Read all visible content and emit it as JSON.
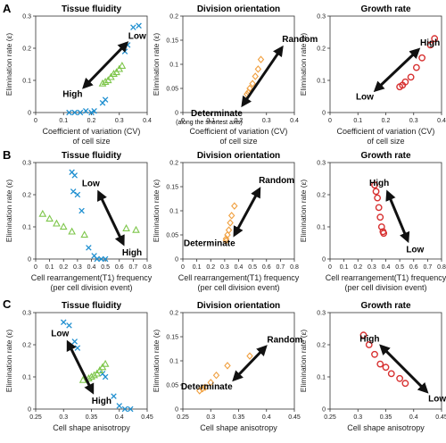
{
  "row_labels": [
    "A",
    "B",
    "C"
  ],
  "colors": {
    "cross": "#1f8fd0",
    "triangle": "#7ec64b",
    "diamond": "#f0a040",
    "circle": "#d73030",
    "axis": "#333333"
  },
  "chart_data": [
    {
      "type": "scatter",
      "row": "A",
      "title": "Tissue fluidity",
      "xlabel": "Coefficient of variation (CV)",
      "xlabel2": "of cell size",
      "ylabel": "Elimination rate (ε)",
      "xlim": [
        0,
        0.4
      ],
      "ylim": [
        0,
        0.3
      ],
      "xticks": [
        "0",
        "0.1",
        "0.2",
        "0.3",
        "0.4"
      ],
      "yticks": [
        "0",
        "0.1",
        "0.2",
        "0.3"
      ],
      "arrow": {
        "from": [
          0.18,
          0.085
        ],
        "to": [
          0.32,
          0.21
        ],
        "head_text": "Low",
        "tail_text": "High"
      },
      "series": [
        {
          "marker": "cross",
          "color": "#1f8fd0",
          "points": [
            [
              0.12,
              0.0
            ],
            [
              0.14,
              0.0
            ],
            [
              0.16,
              0.0
            ],
            [
              0.18,
              0.005
            ],
            [
              0.2,
              0.0
            ],
            [
              0.21,
              0.005
            ],
            [
              0.24,
              0.03
            ],
            [
              0.25,
              0.04
            ],
            [
              0.32,
              0.19
            ],
            [
              0.33,
              0.21
            ],
            [
              0.35,
              0.265
            ],
            [
              0.37,
              0.27
            ]
          ]
        },
        {
          "marker": "triangle",
          "color": "#7ec64b",
          "points": [
            [
              0.24,
              0.09
            ],
            [
              0.25,
              0.095
            ],
            [
              0.26,
              0.1
            ],
            [
              0.27,
              0.11
            ],
            [
              0.28,
              0.12
            ],
            [
              0.29,
              0.125
            ],
            [
              0.3,
              0.135
            ],
            [
              0.31,
              0.145
            ]
          ]
        }
      ]
    },
    {
      "type": "scatter",
      "row": "A",
      "title": "Division orientation",
      "xlabel": "Coefficient of variation (CV)",
      "xlabel2": "of cell size",
      "ylabel": "Elimination rate (ε)",
      "xlim": [
        0,
        0.4
      ],
      "ylim": [
        0,
        0.2
      ],
      "xticks": [
        "0",
        "0.1",
        "0.2",
        "0.3",
        "0.4"
      ],
      "yticks": [
        "0",
        "0.05",
        "0.1",
        "0.15",
        "0.2"
      ],
      "arrow": {
        "from": [
          0.22,
          0.02
        ],
        "to": [
          0.35,
          0.13
        ],
        "head_text": "Random",
        "tail_text": "Determinate",
        "tail_text2": "(along the shortest axis)"
      },
      "series": [
        {
          "marker": "diamond",
          "color": "#f0a040",
          "points": [
            [
              0.23,
              0.038
            ],
            [
              0.235,
              0.042
            ],
            [
              0.24,
              0.05
            ],
            [
              0.25,
              0.06
            ],
            [
              0.26,
              0.075
            ],
            [
              0.27,
              0.09
            ],
            [
              0.28,
              0.11
            ]
          ]
        }
      ]
    },
    {
      "type": "scatter",
      "row": "A",
      "title": "Growth rate",
      "xlabel": "Coefficient of variation (CV)",
      "xlabel2": "of cell size",
      "ylabel": "Elimination rate (ε)",
      "xlim": [
        0,
        0.4
      ],
      "ylim": [
        0,
        0.3
      ],
      "xticks": [
        "0",
        "0.1",
        "0.2",
        "0.3",
        "0.4"
      ],
      "yticks": [
        "0",
        "0.1",
        "0.2",
        "0.3"
      ],
      "arrow": {
        "from": [
          0.17,
          0.075
        ],
        "to": [
          0.31,
          0.19
        ],
        "head_text": "High",
        "tail_text": "Low"
      },
      "series": [
        {
          "marker": "circle",
          "color": "#d73030",
          "points": [
            [
              0.25,
              0.08
            ],
            [
              0.26,
              0.085
            ],
            [
              0.27,
              0.095
            ],
            [
              0.29,
              0.11
            ],
            [
              0.31,
              0.14
            ],
            [
              0.33,
              0.17
            ],
            [
              0.36,
              0.21
            ],
            [
              0.375,
              0.23
            ]
          ]
        }
      ]
    },
    {
      "type": "scatter",
      "row": "B",
      "title": "Tissue fluidity",
      "xlabel": "Cell rearrangement(T1) frequency",
      "xlabel2": "(per cell division event)",
      "ylabel": "Elimination rate (ε)",
      "xlim": [
        0,
        0.8
      ],
      "ylim": [
        0,
        0.3
      ],
      "xticks": [
        "0",
        "0.1",
        "0.2",
        "0.3",
        "0.4",
        "0.5",
        "0.6",
        "0.7",
        "0.8"
      ],
      "yticks": [
        "0",
        "0.1",
        "0.2",
        "0.3"
      ],
      "arrow": {
        "from": [
          0.46,
          0.2
        ],
        "to": [
          0.62,
          0.055
        ],
        "head_text": "High",
        "tail_text": "Low"
      },
      "series": [
        {
          "marker": "cross",
          "color": "#1f8fd0",
          "points": [
            [
              0.26,
              0.27
            ],
            [
              0.28,
              0.26
            ],
            [
              0.27,
              0.21
            ],
            [
              0.3,
              0.2
            ],
            [
              0.33,
              0.15
            ],
            [
              0.38,
              0.035
            ],
            [
              0.42,
              0.01
            ],
            [
              0.44,
              0.0
            ],
            [
              0.47,
              0.0
            ],
            [
              0.5,
              0.0
            ]
          ]
        },
        {
          "marker": "triangle",
          "color": "#7ec64b",
          "points": [
            [
              0.05,
              0.14
            ],
            [
              0.1,
              0.125
            ],
            [
              0.15,
              0.11
            ],
            [
              0.2,
              0.1
            ],
            [
              0.26,
              0.085
            ],
            [
              0.35,
              0.075
            ],
            [
              0.65,
              0.095
            ],
            [
              0.72,
              0.09
            ]
          ]
        }
      ]
    },
    {
      "type": "scatter",
      "row": "B",
      "title": "Division orientation",
      "xlabel": "Cell rearrangement(T1) frequency",
      "xlabel2": "(per cell division event)",
      "ylabel": "Elimination rate (ε)",
      "xlim": [
        0,
        0.8
      ],
      "ylim": [
        0,
        0.2
      ],
      "xticks": [
        "0",
        "0.1",
        "0.2",
        "0.3",
        "0.4",
        "0.5",
        "0.6",
        "0.7",
        "0.8"
      ],
      "yticks": [
        "0",
        "0.05",
        "0.1",
        "0.15",
        "0.2"
      ],
      "arrow": {
        "from": [
          0.38,
          0.055
        ],
        "to": [
          0.54,
          0.14
        ],
        "head_text": "Random",
        "tail_text": "Determinate"
      },
      "series": [
        {
          "marker": "diamond",
          "color": "#f0a040",
          "points": [
            [
              0.31,
              0.038
            ],
            [
              0.31,
              0.042
            ],
            [
              0.32,
              0.05
            ],
            [
              0.33,
              0.06
            ],
            [
              0.34,
              0.075
            ],
            [
              0.35,
              0.09
            ],
            [
              0.37,
              0.11
            ]
          ]
        }
      ]
    },
    {
      "type": "scatter",
      "row": "B",
      "title": "Growth rate",
      "xlabel": "Cell rearrangement(T1) frequency",
      "xlabel2": "(per cell division event)",
      "ylabel": "Elimination rate (ε)",
      "xlim": [
        0,
        0.8
      ],
      "ylim": [
        0,
        0.3
      ],
      "xticks": [
        "0",
        "0.1",
        "0.2",
        "0.3",
        "0.4",
        "0.5",
        "0.6",
        "0.7",
        "0.8"
      ],
      "yticks": [
        "0",
        "0.1",
        "0.2",
        "0.3"
      ],
      "arrow": {
        "from": [
          0.42,
          0.2
        ],
        "to": [
          0.55,
          0.065
        ],
        "head_text": "Low",
        "tail_text": "High"
      },
      "series": [
        {
          "marker": "circle",
          "color": "#d73030",
          "points": [
            [
              0.32,
              0.23
            ],
            [
              0.33,
              0.21
            ],
            [
              0.34,
              0.19
            ],
            [
              0.35,
              0.16
            ],
            [
              0.36,
              0.13
            ],
            [
              0.37,
              0.1
            ],
            [
              0.38,
              0.085
            ],
            [
              0.385,
              0.08
            ]
          ]
        }
      ]
    },
    {
      "type": "scatter",
      "row": "C",
      "title": "Tissue fluidity",
      "xlabel": "Cell shape anisotropy",
      "ylabel": "Elimination rate (ε)",
      "xlim": [
        0.25,
        0.45
      ],
      "ylim": [
        0,
        0.3
      ],
      "xticks": [
        "0.25",
        "0.3",
        "0.35",
        "0.4",
        "0.45"
      ],
      "yticks": [
        "0",
        "0.1",
        "0.2",
        "0.3"
      ],
      "arrow": {
        "from": [
          0.31,
          0.2
        ],
        "to": [
          0.35,
          0.06
        ],
        "head_text": "High",
        "tail_text": "Low"
      },
      "series": [
        {
          "marker": "cross",
          "color": "#1f8fd0",
          "points": [
            [
              0.3,
              0.27
            ],
            [
              0.31,
              0.26
            ],
            [
              0.32,
              0.21
            ],
            [
              0.325,
              0.19
            ],
            [
              0.37,
              0.11
            ],
            [
              0.375,
              0.1
            ],
            [
              0.39,
              0.04
            ],
            [
              0.4,
              0.01
            ],
            [
              0.41,
              0.0
            ],
            [
              0.42,
              0.0
            ]
          ]
        },
        {
          "marker": "triangle",
          "color": "#7ec64b",
          "points": [
            [
              0.335,
              0.09
            ],
            [
              0.345,
              0.095
            ],
            [
              0.35,
              0.1
            ],
            [
              0.355,
              0.105
            ],
            [
              0.36,
              0.11
            ],
            [
              0.365,
              0.12
            ],
            [
              0.37,
              0.13
            ],
            [
              0.375,
              0.14
            ]
          ]
        }
      ]
    },
    {
      "type": "scatter",
      "row": "C",
      "title": "Division orientation",
      "xlabel": "Cell shape anisotropy",
      "ylabel": "Elimination rate (ε)",
      "xlim": [
        0.25,
        0.45
      ],
      "ylim": [
        0,
        0.2
      ],
      "xticks": [
        "0.25",
        "0.3",
        "0.35",
        "0.4",
        "0.45"
      ],
      "yticks": [
        "0",
        "0.05",
        "0.1",
        "0.15",
        "0.2"
      ],
      "arrow": {
        "from": [
          0.345,
          0.065
        ],
        "to": [
          0.395,
          0.125
        ],
        "head_text": "Random",
        "tail_text": "Determinate"
      },
      "series": [
        {
          "marker": "diamond",
          "color": "#f0a040",
          "points": [
            [
              0.28,
              0.038
            ],
            [
              0.285,
              0.042
            ],
            [
              0.29,
              0.045
            ],
            [
              0.3,
              0.055
            ],
            [
              0.31,
              0.07
            ],
            [
              0.33,
              0.09
            ],
            [
              0.37,
              0.11
            ]
          ]
        }
      ]
    },
    {
      "type": "scatter",
      "row": "C",
      "title": "Growth rate",
      "xlabel": "Cell shape anisotropy",
      "ylabel": "Elimination rate (ε)",
      "xlim": [
        0.25,
        0.45
      ],
      "ylim": [
        0,
        0.3
      ],
      "xticks": [
        "0.25",
        "0.3",
        "0.35",
        "0.4",
        "0.45"
      ],
      "yticks": [
        "0",
        "0.1",
        "0.2",
        "0.3"
      ],
      "arrow": {
        "from": [
          0.345,
          0.19
        ],
        "to": [
          0.42,
          0.06
        ],
        "head_text": "Low",
        "tail_text": "High"
      },
      "series": [
        {
          "marker": "circle",
          "color": "#d73030",
          "points": [
            [
              0.31,
              0.23
            ],
            [
              0.32,
              0.2
            ],
            [
              0.33,
              0.17
            ],
            [
              0.34,
              0.14
            ],
            [
              0.35,
              0.13
            ],
            [
              0.36,
              0.11
            ],
            [
              0.375,
              0.095
            ],
            [
              0.385,
              0.08
            ]
          ]
        }
      ]
    }
  ]
}
